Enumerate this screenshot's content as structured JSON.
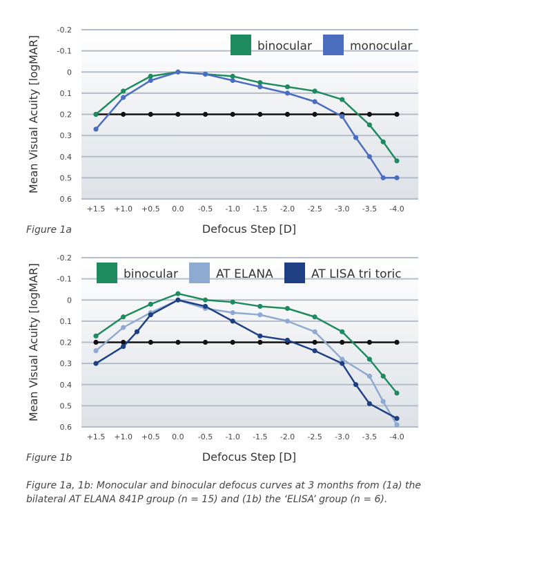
{
  "figures": [
    {
      "id": "1a",
      "figure_label": "Figure 1a",
      "chart_data": {
        "type": "line",
        "categories": [
          "+1.5",
          "+1.0",
          "+0.5",
          "0.0",
          "-0.5",
          "-1.0",
          "-1.5",
          "-2.0",
          "-2.5",
          "-3.0",
          "-3.5",
          "-4.0"
        ],
        "ylabel": "Mean Visual Acuity [logMAR]",
        "xlabel": "Defocus Step [D]",
        "ylim": [
          -0.2,
          0.6
        ],
        "y_inverted": true,
        "yticks": [
          "-0.2",
          "-0.1",
          "0",
          "0.1",
          "0.2",
          "0.3",
          "0.4",
          "0.5",
          "0.6"
        ],
        "grid": true,
        "legend_position": "top-right",
        "series": [
          {
            "name": "binocular",
            "color": "#1f8a5e",
            "x": [
              1.5,
              1.0,
              0.5,
              0.0,
              -0.5,
              -1.0,
              -1.5,
              -2.0,
              -2.5,
              -3.0,
              -3.5,
              -3.75,
              -4.0
            ],
            "values": [
              0.2,
              0.09,
              0.02,
              0.0,
              0.01,
              0.02,
              0.05,
              0.07,
              0.09,
              0.13,
              0.25,
              0.33,
              0.42
            ]
          },
          {
            "name": "monocular",
            "color": "#4a6dbd",
            "x": [
              1.5,
              1.0,
              0.5,
              0.0,
              -0.5,
              -1.0,
              -1.5,
              -2.0,
              -2.5,
              -3.0,
              -3.25,
              -3.5,
              -3.75,
              -4.0
            ],
            "values": [
              0.27,
              0.12,
              0.04,
              0.0,
              0.01,
              0.04,
              0.07,
              0.1,
              0.14,
              0.21,
              0.31,
              0.4,
              0.5,
              0.5
            ]
          },
          {
            "color": "#111111",
            "x": [
              1.5,
              1.0,
              0.5,
              0.0,
              -0.5,
              -1.0,
              -1.5,
              -2.0,
              -2.5,
              -3.0,
              -3.5,
              -4.0
            ],
            "values": [
              0.2,
              0.2,
              0.2,
              0.2,
              0.2,
              0.2,
              0.2,
              0.2,
              0.2,
              0.2,
              0.2,
              0.2
            ]
          }
        ]
      }
    },
    {
      "id": "1b",
      "figure_label": "Figure 1b",
      "chart_data": {
        "type": "line",
        "categories": [
          "+1.5",
          "+1.0",
          "+0.5",
          "0.0",
          "-0.5",
          "-1.0",
          "-1.5",
          "-2.0",
          "-2.5",
          "-3.0",
          "-3.5",
          "-4.0"
        ],
        "ylabel": "Mean Visual Acuity [logMAR]",
        "xlabel": "Defocus Step [D]",
        "ylim": [
          -0.2,
          0.6
        ],
        "y_inverted": true,
        "yticks": [
          "-0.2",
          "-0.1",
          "0",
          "0.1",
          "0.2",
          "0.3",
          "0.4",
          "0.5",
          "0.6"
        ],
        "grid": true,
        "legend_position": "top",
        "series": [
          {
            "name": "binocular",
            "color": "#1f8a5e",
            "x": [
              1.5,
              1.0,
              0.5,
              0.0,
              -0.5,
              -1.0,
              -1.5,
              -2.0,
              -2.5,
              -3.0,
              -3.5,
              -3.75,
              -4.0
            ],
            "values": [
              0.17,
              0.08,
              0.02,
              -0.03,
              0.0,
              0.01,
              0.03,
              0.04,
              0.08,
              0.15,
              0.28,
              0.36,
              0.44
            ]
          },
          {
            "name": "AT ELANA",
            "color": "#8faad0",
            "x": [
              1.5,
              1.0,
              0.5,
              0.0,
              -0.5,
              -1.0,
              -1.5,
              -2.0,
              -2.5,
              -3.0,
              -3.5,
              -3.75,
              -4.0
            ],
            "values": [
              0.24,
              0.13,
              0.06,
              0.0,
              0.04,
              0.06,
              0.07,
              0.1,
              0.15,
              0.28,
              0.36,
              0.48,
              0.59
            ]
          },
          {
            "name": "AT LISA tri toric",
            "color": "#1e3f82",
            "x": [
              1.5,
              1.0,
              0.75,
              0.5,
              0.0,
              -0.5,
              -1.0,
              -1.5,
              -2.0,
              -2.5,
              -3.0,
              -3.25,
              -3.5,
              -4.0
            ],
            "values": [
              0.3,
              0.22,
              0.15,
              0.07,
              0.0,
              0.03,
              0.1,
              0.17,
              0.19,
              0.24,
              0.3,
              0.4,
              0.49,
              0.56
            ]
          },
          {
            "color": "#111111",
            "x": [
              1.5,
              1.0,
              0.5,
              0.0,
              -0.5,
              -1.0,
              -1.5,
              -2.0,
              -2.5,
              -3.0,
              -3.5,
              -4.0
            ],
            "values": [
              0.2,
              0.2,
              0.2,
              0.2,
              0.2,
              0.2,
              0.2,
              0.2,
              0.2,
              0.2,
              0.2,
              0.2
            ]
          }
        ]
      }
    }
  ],
  "caption": "Figure 1a, 1b: Monocular and binocular defocus curves at 3 months from (1a) the bilateral AT ELANA 841P group (n = 15) and (1b) the ‘ELISA’ group (n = 6)."
}
